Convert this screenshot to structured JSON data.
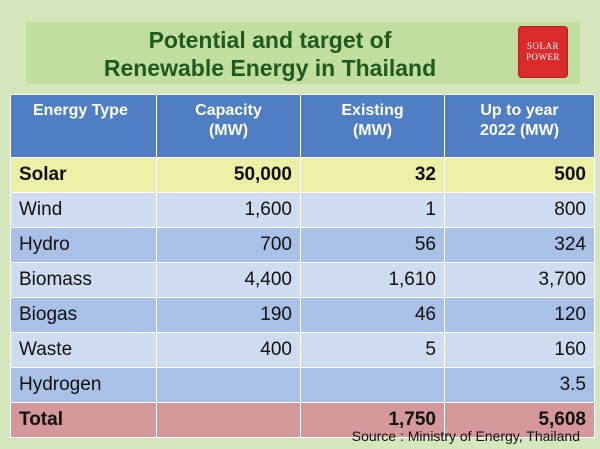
{
  "title": {
    "line1": "Potential and target of",
    "line2": "Renewable Energy in Thailand"
  },
  "logo": {
    "line1": "SOLAR",
    "line2": "POWER"
  },
  "table": {
    "headers": [
      {
        "line1": "Energy Type",
        "line2": ""
      },
      {
        "line1": "Capacity",
        "line2": "(MW)"
      },
      {
        "line1": "Existing",
        "line2": "(MW)"
      },
      {
        "line1": "Up to year",
        "line2": "2022 (MW)"
      }
    ],
    "rows": [
      {
        "type": "Solar",
        "capacity": "50,000",
        "existing": "32",
        "target": "500"
      },
      {
        "type": "Wind",
        "capacity": "1,600",
        "existing": "1",
        "target": "800"
      },
      {
        "type": "Hydro",
        "capacity": "700",
        "existing": "56",
        "target": "324"
      },
      {
        "type": "Biomass",
        "capacity": "4,400",
        "existing": "1,610",
        "target": "3,700"
      },
      {
        "type": "Biogas",
        "capacity": "190",
        "existing": "46",
        "target": "120"
      },
      {
        "type": "Waste",
        "capacity": "400",
        "existing": "5",
        "target": "160"
      },
      {
        "type": "Hydrogen",
        "capacity": "",
        "existing": "",
        "target": "3.5"
      },
      {
        "type": "Total",
        "capacity": "",
        "existing": "1,750",
        "target": "5,608"
      }
    ]
  },
  "source": "Source : Ministry of Energy, Thailand",
  "colors": {
    "background": "#d5e6bd",
    "title_band": "#c2de9f",
    "title_text": "#1f5b1e",
    "header": "#4f7fc2",
    "row_light": "#cfdcf0",
    "row_dark": "#a9c1e6",
    "solar_row": "#ecf0a6",
    "total_row": "#d5989a",
    "logo": "#d92b2b"
  }
}
